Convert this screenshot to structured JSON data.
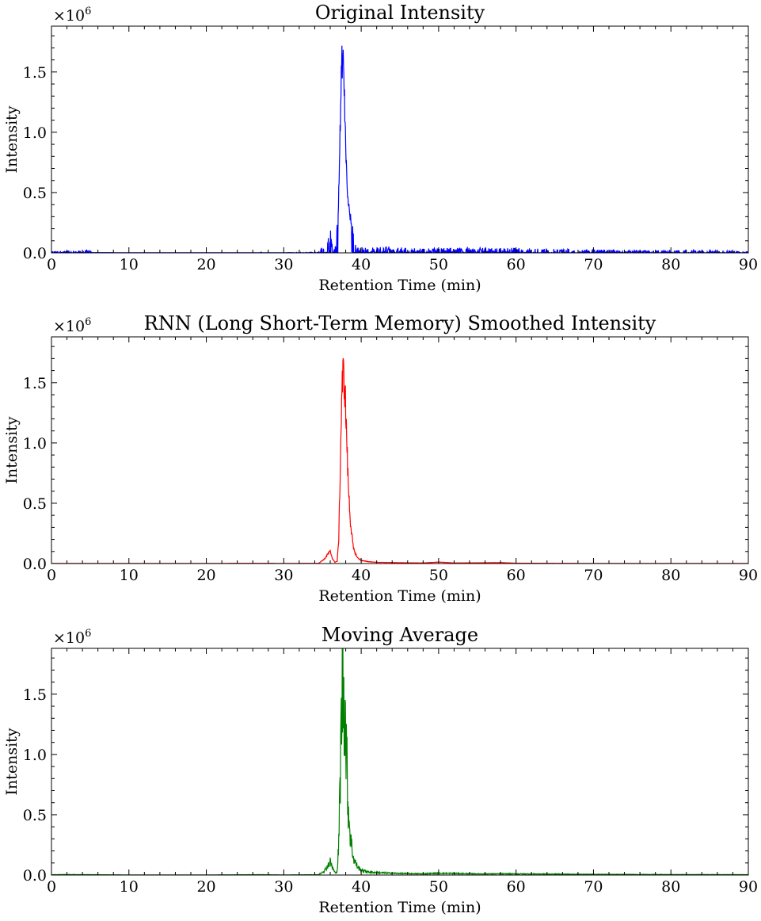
{
  "chart_data": [
    {
      "type": "line",
      "title": "Original Intensity",
      "xlabel": "Retention Time (min)",
      "ylabel": "Intensity",
      "multiplier": "×10",
      "multiplier_exp": "6",
      "xlim": [
        0,
        90
      ],
      "ylim": [
        0,
        1.88
      ],
      "xticks": [
        0,
        10,
        20,
        30,
        40,
        50,
        60,
        70,
        80,
        90
      ],
      "yticks": [
        "0.0",
        "0.5",
        "1.0",
        "1.5"
      ],
      "grid": false,
      "color": "#0000ff",
      "noise": "high",
      "series": [
        {
          "x": [
            0,
            2,
            4,
            4.8,
            5.2,
            10,
            20,
            26.9,
            27.0,
            27.1,
            30,
            34.5,
            35.2,
            35.6,
            35.9,
            36.1,
            36.4,
            36.7,
            37.0,
            37.2,
            37.4,
            37.55,
            37.7,
            37.9,
            38.1,
            38.3,
            38.6,
            39.0,
            39.5,
            40,
            41,
            42,
            44,
            46,
            48,
            50,
            55,
            60,
            65,
            70,
            75,
            80,
            85,
            90
          ],
          "y": [
            0.01,
            0.012,
            0.01,
            0.02,
            0.002,
            0.001,
            0.001,
            0.001,
            0.07,
            0.001,
            0.001,
            0.005,
            0.06,
            0.15,
            0.22,
            0.1,
            0.03,
            0.05,
            0.25,
            0.8,
            1.45,
            1.7,
            1.6,
            1.2,
            0.75,
            0.45,
            0.3,
            0.12,
            0.06,
            0.04,
            0.03,
            0.035,
            0.04,
            0.03,
            0.025,
            0.03,
            0.03,
            0.03,
            0.025,
            0.02,
            0.015,
            0.015,
            0.015,
            0.01
          ]
        }
      ]
    },
    {
      "type": "line",
      "title": "RNN (Long Short-Term Memory) Smoothed Intensity",
      "xlabel": "Retention Time (min)",
      "ylabel": "Intensity",
      "multiplier": "×10",
      "multiplier_exp": "6",
      "xlim": [
        0,
        90
      ],
      "ylim": [
        0,
        1.88
      ],
      "xticks": [
        0,
        10,
        20,
        30,
        40,
        50,
        60,
        70,
        80,
        90
      ],
      "yticks": [
        "0.0",
        "0.5",
        "1.0",
        "1.5"
      ],
      "grid": false,
      "color": "#ff0000",
      "noise": "low",
      "series": [
        {
          "x": [
            0,
            10,
            20,
            27,
            30,
            34.5,
            35.3,
            35.7,
            36.0,
            36.3,
            36.6,
            36.9,
            37.1,
            37.3,
            37.5,
            37.7,
            37.9,
            38.1,
            38.3,
            38.6,
            39.0,
            39.5,
            40,
            41,
            42,
            44,
            46,
            48,
            50,
            52,
            55,
            58,
            60,
            65,
            70,
            80,
            90
          ],
          "y": [
            0.001,
            0.001,
            0.001,
            0.002,
            0.001,
            0.002,
            0.04,
            0.08,
            0.1,
            0.04,
            0.01,
            0.02,
            0.2,
            0.8,
            1.45,
            1.58,
            1.45,
            1.1,
            0.7,
            0.35,
            0.12,
            0.05,
            0.025,
            0.015,
            0.01,
            0.008,
            0.006,
            0.005,
            0.012,
            0.005,
            0.006,
            0.008,
            0.003,
            0.002,
            0.001,
            0.001,
            0.001
          ]
        }
      ]
    },
    {
      "type": "line",
      "title": "Moving Average",
      "xlabel": "Retention Time (min)",
      "ylabel": "Intensity",
      "multiplier": "×10",
      "multiplier_exp": "6",
      "xlim": [
        0,
        90
      ],
      "ylim": [
        0,
        1.88
      ],
      "xticks": [
        0,
        10,
        20,
        30,
        40,
        50,
        60,
        70,
        80,
        90
      ],
      "yticks": [
        "0.0",
        "0.5",
        "1.0",
        "1.5"
      ],
      "grid": false,
      "color": "#008000",
      "noise": "medium",
      "series": [
        {
          "x": [
            0,
            2,
            5,
            10,
            20,
            27,
            30,
            34.5,
            35.3,
            35.7,
            36.0,
            36.3,
            36.6,
            36.9,
            37.1,
            37.3,
            37.5,
            37.7,
            37.9,
            38.1,
            38.3,
            38.6,
            39.0,
            39.5,
            40,
            41,
            42,
            44,
            46,
            48,
            50,
            55,
            60,
            65,
            70,
            75,
            80,
            85,
            90
          ],
          "y": [
            0.003,
            0.004,
            0.003,
            0.001,
            0.001,
            0.003,
            0.001,
            0.003,
            0.04,
            0.08,
            0.11,
            0.06,
            0.02,
            0.03,
            0.25,
            0.85,
            1.45,
            1.58,
            1.4,
            1.0,
            0.6,
            0.32,
            0.14,
            0.07,
            0.04,
            0.025,
            0.02,
            0.015,
            0.012,
            0.01,
            0.015,
            0.01,
            0.01,
            0.008,
            0.006,
            0.005,
            0.004,
            0.004,
            0.003
          ]
        }
      ]
    }
  ]
}
